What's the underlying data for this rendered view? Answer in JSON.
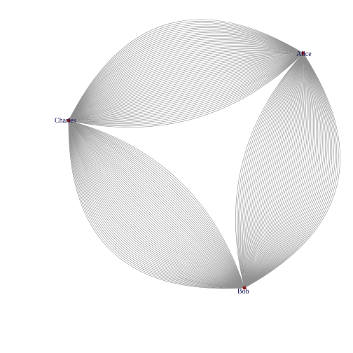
{
  "nodes": [
    {
      "id": "alice",
      "label": "Alice"
    },
    {
      "id": "bob",
      "label": "Bob"
    },
    {
      "id": "charles",
      "label": "Charles"
    }
  ],
  "edge_bundles": [
    {
      "from": "alice",
      "to": "charles",
      "count": 55
    },
    {
      "from": "alice",
      "to": "bob",
      "count": 55
    },
    {
      "from": "bob",
      "to": "charles",
      "count": 55
    }
  ],
  "colors": {
    "edge": "#8f8f8f",
    "node": "#8b1a1a",
    "label": "#0d0d52",
    "background": "#ffffff"
  }
}
